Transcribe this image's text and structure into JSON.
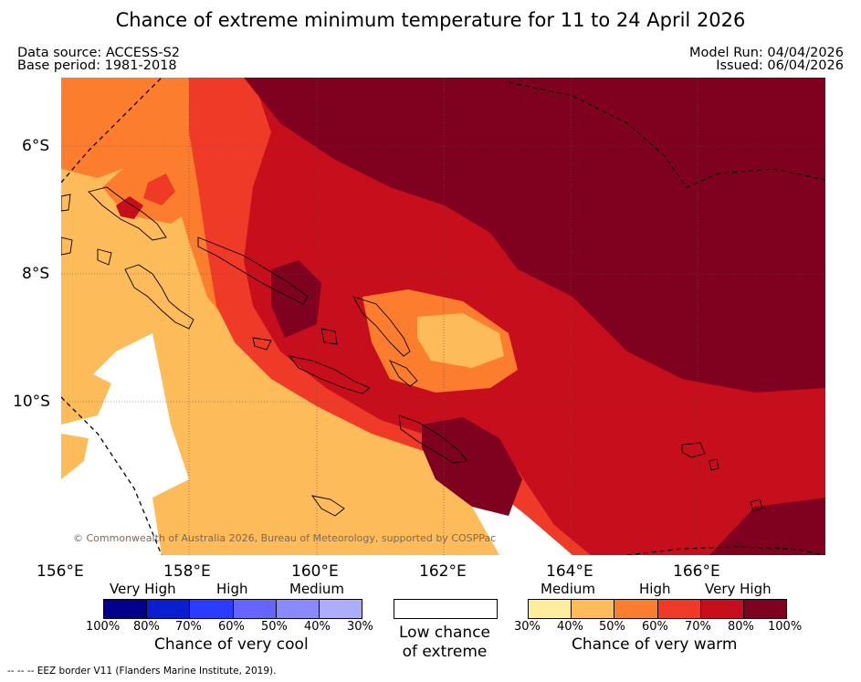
{
  "title": "Chance of extreme minimum temperature for 11 to 24 April 2026",
  "header": {
    "data_source": "Data source: ACCESS-S2",
    "base_period": "Base period: 1981-2018",
    "model_run": "Model Run: 04/04/2026",
    "issued": "Issued: 06/04/2026"
  },
  "map": {
    "lat_labels": [
      "6°S",
      "8°S",
      "10°S"
    ],
    "lon_labels": [
      "156°E",
      "158°E",
      "160°E",
      "162°E",
      "164°E",
      "166°E"
    ],
    "copyright": "© Commonwealth of Australia 2026, Bureau of Meteorology, supported by COSPPac"
  },
  "legend": {
    "cool": {
      "categories": [
        "Very High",
        "High",
        "Medium"
      ],
      "ticks": [
        "100%",
        "80%",
        "70%",
        "60%",
        "50%",
        "40%",
        "30%"
      ],
      "colors": [
        "#00008b",
        "#0a1ecf",
        "#2a3cff",
        "#6464ff",
        "#8a8aff",
        "#adadff"
      ],
      "caption": "Chance of very cool"
    },
    "low": {
      "caption_line1": "Low chance",
      "caption_line2": "of extreme",
      "color": "#ffffff"
    },
    "warm": {
      "categories": [
        "Medium",
        "High",
        "Very High"
      ],
      "ticks": [
        "30%",
        "40%",
        "50%",
        "60%",
        "70%",
        "80%",
        "100%"
      ],
      "colors": [
        "#ffec9c",
        "#fdbb5a",
        "#fc7d2e",
        "#ee3a26",
        "#c70e1c",
        "#800020"
      ],
      "caption": "Chance of very warm"
    }
  },
  "footnote": "--  --  -- EEZ border V11 (Flanders Marine Institute, 2019)."
}
